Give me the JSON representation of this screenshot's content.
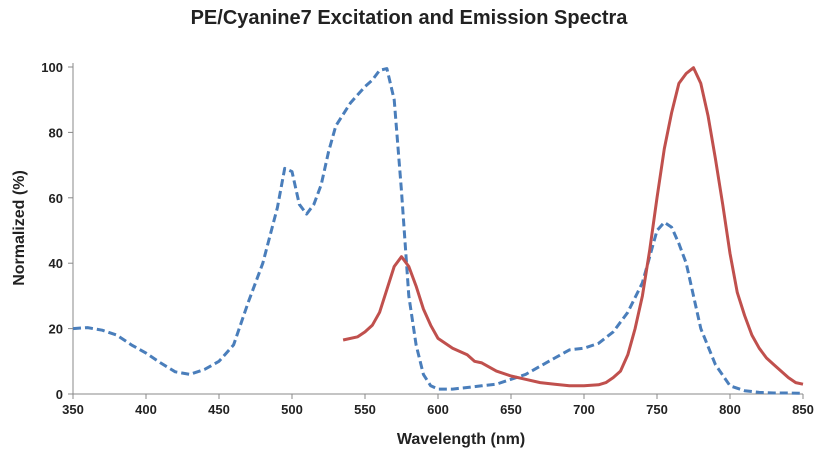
{
  "chart_data": {
    "type": "line",
    "title": "PE/Cyanine7 Excitation and Emission Spectra",
    "xlabel": "Wavelength (nm)",
    "ylabel": "Normalized (%)",
    "xlim": [
      350,
      850
    ],
    "ylim": [
      0,
      100
    ],
    "x_ticks": [
      350,
      400,
      450,
      500,
      550,
      600,
      650,
      700,
      750,
      800,
      850
    ],
    "y_ticks": [
      0,
      20,
      40,
      60,
      80,
      100
    ],
    "grid": false,
    "legend": "none",
    "series": [
      {
        "style": "dashed",
        "color": "#4a7ebb",
        "points": [
          [
            350,
            20
          ],
          [
            360,
            20.3
          ],
          [
            370,
            19.5
          ],
          [
            380,
            18
          ],
          [
            390,
            15
          ],
          [
            400,
            12.5
          ],
          [
            410,
            9.5
          ],
          [
            420,
            6.8
          ],
          [
            430,
            6
          ],
          [
            440,
            7.5
          ],
          [
            450,
            10
          ],
          [
            460,
            15
          ],
          [
            470,
            28
          ],
          [
            480,
            40
          ],
          [
            490,
            57
          ],
          [
            495,
            69
          ],
          [
            500,
            68
          ],
          [
            505,
            58
          ],
          [
            510,
            55
          ],
          [
            515,
            58
          ],
          [
            520,
            64
          ],
          [
            525,
            74
          ],
          [
            530,
            82
          ],
          [
            540,
            89
          ],
          [
            550,
            94
          ],
          [
            555,
            96
          ],
          [
            560,
            99
          ],
          [
            565,
            99.5
          ],
          [
            570,
            90
          ],
          [
            575,
            62
          ],
          [
            580,
            30
          ],
          [
            585,
            15
          ],
          [
            590,
            6
          ],
          [
            595,
            2.5
          ],
          [
            600,
            1.5
          ],
          [
            610,
            1.5
          ],
          [
            620,
            2
          ],
          [
            630,
            2.5
          ],
          [
            640,
            3
          ],
          [
            650,
            4.5
          ],
          [
            660,
            6
          ],
          [
            670,
            8.5
          ],
          [
            680,
            11
          ],
          [
            690,
            13.5
          ],
          [
            700,
            14
          ],
          [
            710,
            15.5
          ],
          [
            720,
            19
          ],
          [
            730,
            25
          ],
          [
            740,
            34
          ],
          [
            745,
            42
          ],
          [
            750,
            50
          ],
          [
            755,
            52.5
          ],
          [
            760,
            51
          ],
          [
            765,
            46
          ],
          [
            770,
            40
          ],
          [
            775,
            30
          ],
          [
            780,
            20
          ],
          [
            790,
            9
          ],
          [
            800,
            2.5
          ],
          [
            810,
            1
          ],
          [
            820,
            0.5
          ],
          [
            830,
            0.3
          ],
          [
            840,
            0.3
          ],
          [
            850,
            0.2
          ]
        ]
      },
      {
        "style": "solid",
        "color": "#c0504d",
        "points": [
          [
            535,
            16.5
          ],
          [
            545,
            17.5
          ],
          [
            550,
            19
          ],
          [
            555,
            21
          ],
          [
            560,
            25
          ],
          [
            565,
            32
          ],
          [
            570,
            39
          ],
          [
            575,
            42
          ],
          [
            580,
            39
          ],
          [
            585,
            33
          ],
          [
            590,
            26
          ],
          [
            595,
            21
          ],
          [
            600,
            17
          ],
          [
            610,
            14
          ],
          [
            620,
            12
          ],
          [
            625,
            10
          ],
          [
            630,
            9.5
          ],
          [
            640,
            7
          ],
          [
            650,
            5.5
          ],
          [
            660,
            4.5
          ],
          [
            670,
            3.5
          ],
          [
            680,
            3
          ],
          [
            690,
            2.5
          ],
          [
            700,
            2.5
          ],
          [
            710,
            2.8
          ],
          [
            715,
            3.5
          ],
          [
            720,
            5
          ],
          [
            725,
            7
          ],
          [
            730,
            12
          ],
          [
            735,
            20
          ],
          [
            740,
            30
          ],
          [
            745,
            44
          ],
          [
            750,
            60
          ],
          [
            755,
            75
          ],
          [
            760,
            86
          ],
          [
            765,
            95
          ],
          [
            770,
            98
          ],
          [
            775,
            99.8
          ],
          [
            780,
            95
          ],
          [
            785,
            85
          ],
          [
            790,
            72
          ],
          [
            795,
            58
          ],
          [
            800,
            43
          ],
          [
            805,
            31
          ],
          [
            810,
            24
          ],
          [
            815,
            18
          ],
          [
            820,
            14
          ],
          [
            825,
            11
          ],
          [
            830,
            9
          ],
          [
            835,
            7
          ],
          [
            840,
            5
          ],
          [
            845,
            3.5
          ],
          [
            850,
            3
          ]
        ]
      }
    ]
  }
}
